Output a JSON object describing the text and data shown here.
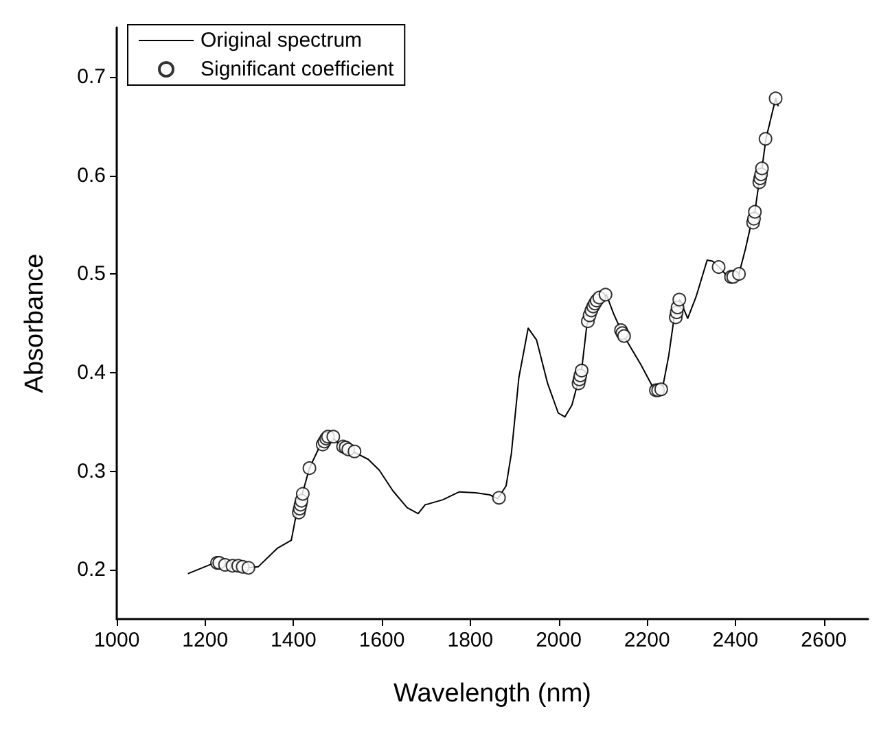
{
  "chart_data": {
    "type": "line",
    "xlabel": "Wavelength (nm)",
    "ylabel": "Absorbance",
    "xlim": [
      1000,
      2700
    ],
    "ylim": [
      0.15,
      0.75
    ],
    "xticks": [
      1000,
      1200,
      1400,
      1600,
      1800,
      2000,
      2200,
      2400,
      2600
    ],
    "yticks": [
      0.2,
      0.3,
      0.4,
      0.5,
      0.6,
      0.7
    ],
    "grid": false,
    "legend": "top left",
    "series": [
      {
        "name": "Original spectrum",
        "color": "#000000",
        "marker": "none",
        "line_style": "solid",
        "x": [
          1161,
          1221,
          1295,
          1320,
          1364,
          1395,
          1407,
          1420,
          1436,
          1457,
          1476,
          1488,
          1513,
          1538,
          1569,
          1594,
          1625,
          1657,
          1682,
          1698,
          1707,
          1738,
          1775,
          1812,
          1844,
          1862,
          1881,
          1893,
          1910,
          1931,
          1950,
          1975,
          1999,
          2014,
          2030,
          2043,
          2052,
          2064,
          2087,
          2108,
          2124,
          2143,
          2149,
          2186,
          2217,
          2234,
          2249,
          2261,
          2274,
          2292,
          2311,
          2336,
          2348,
          2363,
          2383,
          2408,
          2423,
          2438,
          2444,
          2454,
          2460,
          2469,
          2491,
          2497
        ],
        "values": [
          0.196,
          0.207,
          0.202,
          0.203,
          0.222,
          0.23,
          0.258,
          0.277,
          0.303,
          0.323,
          0.334,
          0.334,
          0.324,
          0.319,
          0.312,
          0.301,
          0.28,
          0.263,
          0.257,
          0.266,
          0.267,
          0.271,
          0.279,
          0.278,
          0.276,
          0.272,
          0.285,
          0.318,
          0.395,
          0.445,
          0.433,
          0.389,
          0.359,
          0.355,
          0.367,
          0.389,
          0.403,
          0.449,
          0.469,
          0.479,
          0.46,
          0.441,
          0.436,
          0.408,
          0.382,
          0.382,
          0.417,
          0.455,
          0.474,
          0.455,
          0.477,
          0.514,
          0.513,
          0.507,
          0.497,
          0.5,
          0.526,
          0.556,
          0.563,
          0.595,
          0.607,
          0.637,
          0.678,
          0.67
        ]
      },
      {
        "name": "Significant coefficient",
        "type": "scatter",
        "color": "#000000",
        "marker": "circle",
        "x": [
          1227,
          1232,
          1245,
          1262,
          1275,
          1285,
          1298,
          1412,
          1414,
          1416,
          1418,
          1421,
          1436,
          1466,
          1470,
          1474,
          1478,
          1490,
          1512,
          1518,
          1524,
          1538,
          1865,
          2045,
          2047,
          2049,
          2052,
          2066,
          2070,
          2074,
          2078,
          2082,
          2086,
          2092,
          2106,
          2141,
          2144,
          2148,
          2220,
          2225,
          2232,
          2265,
          2267,
          2269,
          2273,
          2362,
          2390,
          2395,
          2408,
          2440,
          2442,
          2444,
          2454,
          2456,
          2458,
          2460,
          2468,
          2491
        ],
        "values": [
          0.207,
          0.207,
          0.205,
          0.204,
          0.204,
          0.203,
          0.202,
          0.258,
          0.262,
          0.266,
          0.27,
          0.277,
          0.303,
          0.327,
          0.33,
          0.333,
          0.335,
          0.335,
          0.325,
          0.324,
          0.322,
          0.32,
          0.273,
          0.389,
          0.393,
          0.397,
          0.402,
          0.452,
          0.458,
          0.463,
          0.467,
          0.47,
          0.473,
          0.476,
          0.479,
          0.443,
          0.44,
          0.437,
          0.382,
          0.382,
          0.383,
          0.456,
          0.461,
          0.466,
          0.474,
          0.507,
          0.497,
          0.497,
          0.5,
          0.552,
          0.556,
          0.563,
          0.593,
          0.597,
          0.601,
          0.607,
          0.637,
          0.678
        ]
      }
    ]
  }
}
